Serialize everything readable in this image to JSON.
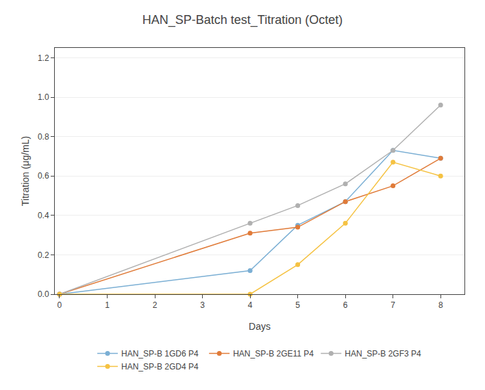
{
  "chart_data": {
    "type": "line",
    "title": "HAN_SP-Batch test_Titration (Octet)",
    "xlabel": "Days",
    "ylabel": "Titration (μg/mL)",
    "xlim": [
      -0.1,
      8.5
    ],
    "xticks": [
      0,
      1,
      2,
      3,
      4,
      5,
      6,
      7,
      8
    ],
    "ylim": [
      0,
      1.25
    ],
    "yticks": [
      {
        "value": 0.0,
        "label": "0.0"
      },
      0.2,
      0.4,
      0.6,
      0.8,
      {
        "value": 1.0,
        "label": "1.0"
      },
      1.2
    ],
    "grid": "y",
    "legend": "bottom",
    "marker": "circle",
    "series": [
      {
        "name": "HAN_SP-B 1GD6 P4",
        "color": "#7bafd4",
        "x": [
          0,
          4,
          5,
          6,
          7,
          8
        ],
        "values": [
          0.0,
          0.12,
          0.35,
          0.47,
          0.73,
          0.69
        ]
      },
      {
        "name": "HAN_SP-B 2GE11 P4",
        "color": "#e07b39",
        "x": [
          0,
          4,
          5,
          6,
          7,
          8
        ],
        "values": [
          0.0,
          0.31,
          0.34,
          0.47,
          0.55,
          0.69
        ]
      },
      {
        "name": "HAN_SP-B 2GF3 P4",
        "color": "#b0b0b0",
        "x": [
          0,
          4,
          5,
          6,
          7,
          8
        ],
        "values": [
          0.0,
          0.36,
          0.45,
          0.56,
          0.73,
          0.96
        ]
      },
      {
        "name": "HAN_SP-B 2GD4 P4",
        "color": "#f5c242",
        "x": [
          0,
          4,
          5,
          6,
          7,
          8
        ],
        "values": [
          0.0,
          0.0,
          0.15,
          0.36,
          0.67,
          0.6
        ]
      }
    ]
  }
}
